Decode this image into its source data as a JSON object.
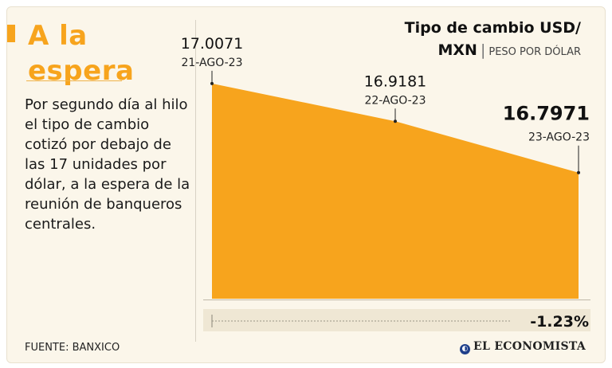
{
  "headline": {
    "line1": "A la",
    "line2": "espera"
  },
  "description": "Por segundo día al hilo el tipo de cambio cotizó por debajo de las 17 unidades por dólar, a la espera de la reunión de banqueros centrales.",
  "chart_title": {
    "line1": "Tipo de cambio USD/",
    "line2_bold": "MXN",
    "separator": "|",
    "subtitle": "PESO POR DÓLAR"
  },
  "source": "FUENTE: BANXICO",
  "brand": {
    "name": "EL ECONOMISTA",
    "icon": "brand-globe-icon"
  },
  "colors": {
    "area": "#f7a41d",
    "accent": "#f7a41d",
    "background": "#fbf6ea",
    "text": "#111111"
  },
  "chart_data": {
    "type": "area",
    "title": "Tipo de cambio USD/MXN",
    "subtitle": "PESO POR DÓLAR",
    "xlabel": "",
    "ylabel": "",
    "grid": false,
    "legend": "none",
    "categories": [
      "21-AGO-23",
      "22-AGO-23",
      "23-AGO-23"
    ],
    "values": [
      17.0071,
      16.9181,
      16.7971
    ],
    "value_labels": [
      "17.0071",
      "16.9181",
      "16.7971"
    ],
    "highlight_index": 2,
    "ylim": [
      16.5,
      17.05
    ],
    "change_label": "-1.23%"
  }
}
